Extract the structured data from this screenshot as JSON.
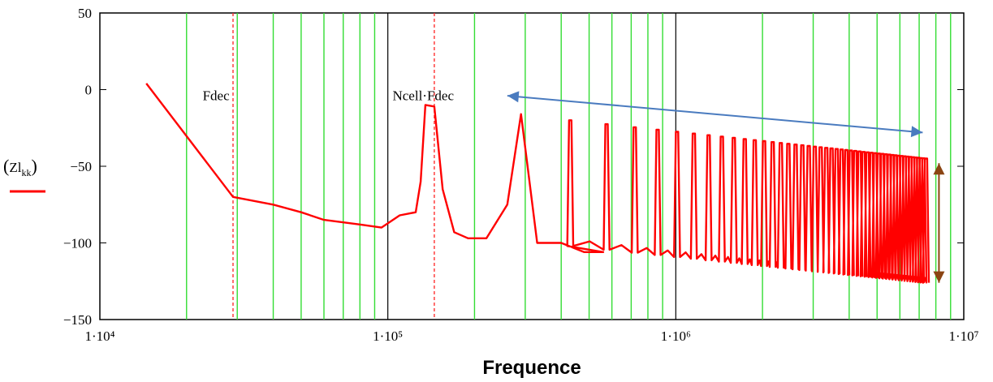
{
  "chart_data": {
    "type": "line",
    "xscale": "log",
    "xlim": [
      10000,
      10000000
    ],
    "ylim": [
      -150,
      50
    ],
    "xlabel": "Frequence",
    "ylabel": "(Zl_kk)",
    "y_ticks": [
      50,
      0,
      -50,
      -100,
      -150
    ],
    "y_tick_labels": [
      "50",
      "0",
      "−50",
      "−100",
      "−150"
    ],
    "x_ticks": [
      10000,
      100000,
      1000000,
      10000000
    ],
    "x_tick_labels": [
      "1·10⁴",
      "1·10⁵",
      "1·10⁶",
      "1·10⁷"
    ],
    "annotations": [
      {
        "text": "Fdec",
        "x": 28000,
        "y": -8
      },
      {
        "text": "Ncell·Fdec",
        "x": 140000,
        "y": -8
      }
    ],
    "markers": [
      {
        "name": "Fdec",
        "x": 29000
      },
      {
        "name": "Ncell·Fdec",
        "x": 145000
      }
    ],
    "grid_x_green": [
      20000,
      30000,
      40000,
      50000,
      60000,
      70000,
      80000,
      90000,
      200000,
      300000,
      400000,
      500000,
      600000,
      700000,
      800000,
      900000,
      2000000,
      3000000,
      4000000,
      5000000,
      6000000,
      7000000,
      8000000,
      9000000
    ],
    "grid_x_black": [
      100000,
      1000000
    ],
    "series": [
      {
        "name": "Zl_kk",
        "color": "#ff0000",
        "x": [
          14500,
          29000,
          40000,
          50000,
          60000,
          80000,
          95000,
          110000,
          125000,
          130000,
          135000,
          145000,
          155000,
          170000,
          190000,
          220000,
          260000,
          290000,
          330000,
          400000,
          480000,
          560000
        ],
        "y": [
          4,
          -70,
          -75,
          -80,
          -85,
          -88,
          -90,
          -82,
          -80,
          -60,
          -10,
          -11,
          -65,
          -93,
          -97,
          -97,
          -75,
          -16,
          -100,
          -100,
          -106,
          -106
        ]
      }
    ],
    "peaks": {
      "start_freq": 430000,
      "spacing": 145000,
      "end_freq": 7400000,
      "high_start": -20,
      "high_end": -45,
      "low_start": -102,
      "low_end": -126
    },
    "overlay_arrows": [
      {
        "name": "blue-envelope-arrow",
        "color": "#4a7bbf",
        "from": [
          260000,
          -4
        ],
        "to": [
          7200000,
          -28
        ]
      },
      {
        "name": "brown-amplitude-arrow",
        "color": "#8b4513",
        "from": [
          8200000,
          -48
        ],
        "to": [
          8200000,
          -126
        ]
      }
    ]
  }
}
